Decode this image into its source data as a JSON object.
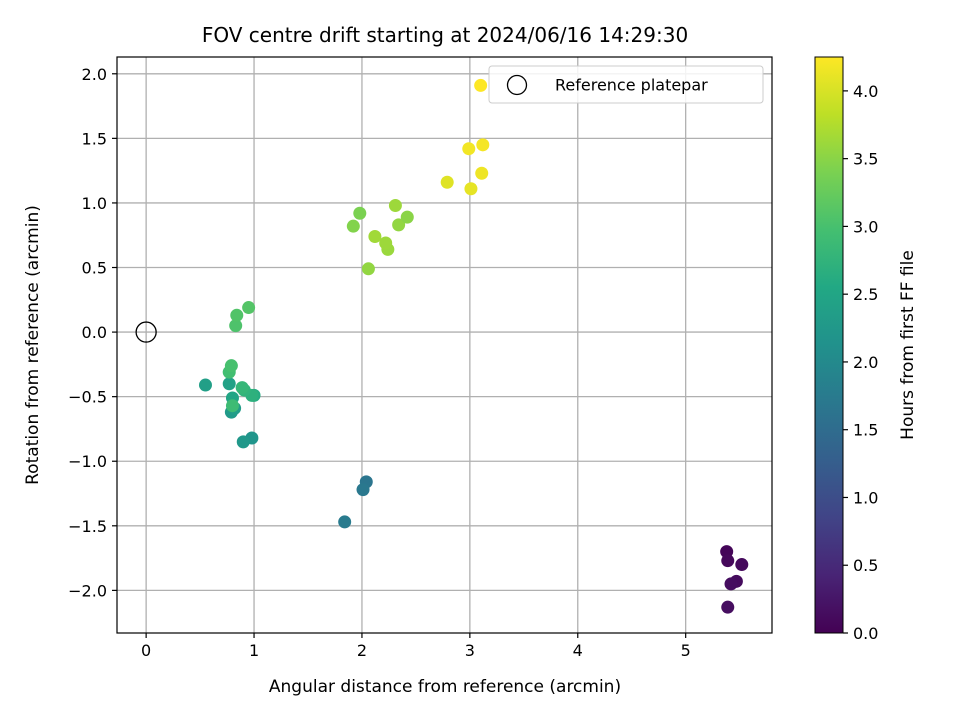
{
  "chart_data": {
    "type": "scatter",
    "title": "FOV centre drift starting at 2024/06/16 14:29:30",
    "xlabel": "Angular distance from reference (arcmin)",
    "ylabel": "Rotation from reference (arcmin)",
    "xlim": [
      -0.27,
      5.8
    ],
    "ylim": [
      -2.33,
      2.13
    ],
    "xticks": [
      0,
      1,
      2,
      3,
      4,
      5
    ],
    "xtick_labels": [
      "0",
      "1",
      "2",
      "3",
      "4",
      "5"
    ],
    "yticks": [
      -2.0,
      -1.5,
      -1.0,
      -0.5,
      0.0,
      0.5,
      1.0,
      1.5,
      2.0
    ],
    "ytick_labels": [
      "−2.0",
      "−1.5",
      "−1.0",
      "−0.5",
      "0.0",
      "0.5",
      "1.0",
      "1.5",
      "2.0"
    ],
    "grid": true,
    "colormap": "viridis",
    "colorbar": {
      "label": "Hours from first FF file",
      "range": [
        0,
        4.25
      ],
      "ticks": [
        0.0,
        0.5,
        1.0,
        1.5,
        2.0,
        2.5,
        3.0,
        3.5,
        4.0
      ],
      "tick_labels": [
        "0.0",
        "0.5",
        "1.0",
        "1.5",
        "2.0",
        "2.5",
        "3.0",
        "3.5",
        "4.0"
      ]
    },
    "legend": {
      "placement": "top-right",
      "entries": [
        "Reference platepar"
      ]
    },
    "reference_point": {
      "x": 0,
      "y": 0,
      "label": "Reference platepar"
    },
    "points": [
      {
        "x": 5.38,
        "y": -1.7,
        "c": 0.05
      },
      {
        "x": 5.39,
        "y": -1.77,
        "c": 0.08
      },
      {
        "x": 5.52,
        "y": -1.8,
        "c": 0.1
      },
      {
        "x": 5.47,
        "y": -1.93,
        "c": 0.12
      },
      {
        "x": 5.42,
        "y": -1.95,
        "c": 0.14
      },
      {
        "x": 5.39,
        "y": -2.13,
        "c": 0.16
      },
      {
        "x": 2.04,
        "y": -1.16,
        "c": 1.65
      },
      {
        "x": 2.01,
        "y": -1.22,
        "c": 1.7
      },
      {
        "x": 1.84,
        "y": -1.47,
        "c": 1.75
      },
      {
        "x": 0.98,
        "y": -0.82,
        "c": 2.2
      },
      {
        "x": 0.9,
        "y": -0.85,
        "c": 2.25
      },
      {
        "x": 0.79,
        "y": -0.62,
        "c": 2.3
      },
      {
        "x": 0.82,
        "y": -0.59,
        "c": 2.35
      },
      {
        "x": 0.55,
        "y": -0.41,
        "c": 2.38
      },
      {
        "x": 0.77,
        "y": -0.4,
        "c": 2.42
      },
      {
        "x": 0.8,
        "y": -0.51,
        "c": 2.5
      },
      {
        "x": 1.0,
        "y": -0.49,
        "c": 2.6
      },
      {
        "x": 0.98,
        "y": -0.49,
        "c": 2.7
      },
      {
        "x": 0.91,
        "y": -0.45,
        "c": 2.75
      },
      {
        "x": 0.89,
        "y": -0.43,
        "c": 2.8
      },
      {
        "x": 0.8,
        "y": -0.57,
        "c": 2.9
      },
      {
        "x": 0.77,
        "y": -0.31,
        "c": 2.95
      },
      {
        "x": 0.79,
        "y": -0.26,
        "c": 3.0
      },
      {
        "x": 0.83,
        "y": 0.05,
        "c": 3.05
      },
      {
        "x": 0.84,
        "y": 0.13,
        "c": 3.08
      },
      {
        "x": 0.95,
        "y": 0.19,
        "c": 3.1
      },
      {
        "x": 2.06,
        "y": 0.49,
        "c": 3.55
      },
      {
        "x": 2.24,
        "y": 0.64,
        "c": 3.6
      },
      {
        "x": 2.22,
        "y": 0.69,
        "c": 3.62
      },
      {
        "x": 2.12,
        "y": 0.74,
        "c": 3.65
      },
      {
        "x": 1.92,
        "y": 0.82,
        "c": 3.45
      },
      {
        "x": 1.98,
        "y": 0.92,
        "c": 3.4
      },
      {
        "x": 2.34,
        "y": 0.83,
        "c": 3.55
      },
      {
        "x": 2.42,
        "y": 0.89,
        "c": 3.5
      },
      {
        "x": 2.31,
        "y": 0.98,
        "c": 3.62
      },
      {
        "x": 2.79,
        "y": 1.16,
        "c": 4.05
      },
      {
        "x": 3.01,
        "y": 1.11,
        "c": 4.1
      },
      {
        "x": 3.11,
        "y": 1.23,
        "c": 4.15
      },
      {
        "x": 2.99,
        "y": 1.42,
        "c": 4.18
      },
      {
        "x": 3.12,
        "y": 1.45,
        "c": 4.2
      },
      {
        "x": 3.1,
        "y": 1.91,
        "c": 4.25
      }
    ]
  }
}
